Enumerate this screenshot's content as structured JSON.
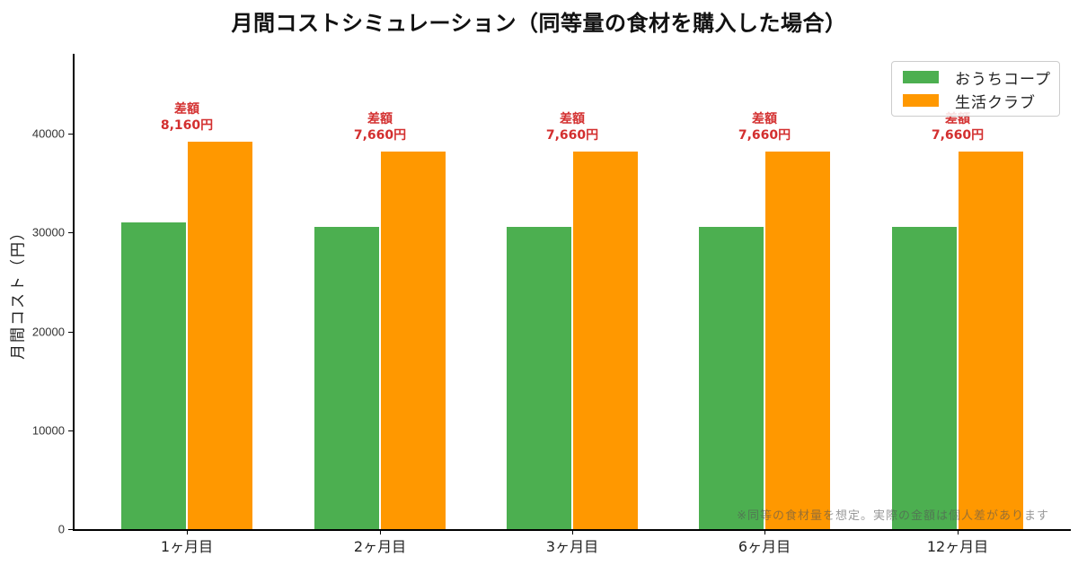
{
  "chart_data": {
    "type": "bar",
    "title": "月間コストシミュレーション（同等量の食材を購入した場合）",
    "xlabel": "",
    "ylabel": "月間コスト（円）",
    "categories": [
      "1ヶ月目",
      "2ヶ月目",
      "3ヶ月目",
      "6ヶ月目",
      "12ヶ月目"
    ],
    "series": [
      {
        "name": "おうちコープ",
        "color": "#4caf50",
        "values": [
          31120,
          30620,
          30620,
          30620,
          30620
        ]
      },
      {
        "name": "生活クラブ",
        "color": "#ff9800",
        "values": [
          39280,
          38280,
          38280,
          38280,
          38280
        ]
      }
    ],
    "annotations": [
      {
        "category": "1ヶ月目",
        "label": "差額",
        "value": "8,160円"
      },
      {
        "category": "2ヶ月目",
        "label": "差額",
        "value": "7,660円"
      },
      {
        "category": "3ヶ月目",
        "label": "差額",
        "value": "7,660円"
      },
      {
        "category": "6ヶ月目",
        "label": "差額",
        "value": "7,660円"
      },
      {
        "category": "12ヶ月目",
        "label": "差額",
        "value": "7,660円"
      }
    ],
    "yticks": [
      "0",
      "10000",
      "20000",
      "30000",
      "40000"
    ],
    "ylim": [
      0,
      48000
    ],
    "grid": false,
    "legend_position": "upper right",
    "footnote": "※同等の食材量を想定。実際の金額は個人差があります",
    "annotation_color": "#d32f2f"
  }
}
